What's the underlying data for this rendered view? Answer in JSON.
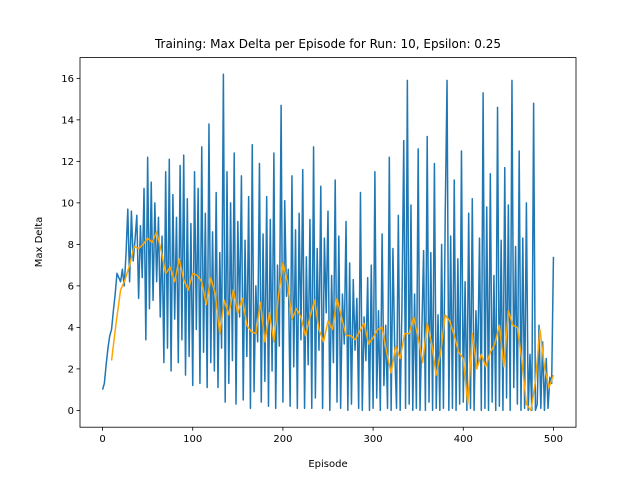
{
  "chart_data": {
    "type": "line",
    "title": "Training: Max Delta per Episode for Run: 10, Epsilon: 0.25",
    "x_label": "Episode",
    "y_label": "Max Delta",
    "xlim": [
      -25,
      525
    ],
    "ylim": [
      -0.81,
      17.0
    ],
    "xticks": [
      0,
      100,
      200,
      300,
      400,
      500
    ],
    "yticks": [
      0,
      2,
      4,
      6,
      8,
      10,
      12,
      14,
      16
    ],
    "grid": false,
    "series": [
      {
        "color": "#1f77b4",
        "x": [
          0,
          2,
          4,
          6,
          8,
          10,
          12,
          14,
          16,
          18,
          20,
          22,
          24,
          26,
          28,
          30,
          32,
          34,
          36,
          38,
          40,
          42,
          44,
          46,
          48,
          50,
          52,
          54,
          56,
          58,
          60,
          62,
          64,
          66,
          68,
          70,
          72,
          74,
          76,
          78,
          80,
          82,
          84,
          86,
          88,
          90,
          92,
          94,
          96,
          98,
          100,
          102,
          104,
          106,
          108,
          110,
          112,
          114,
          116,
          118,
          120,
          122,
          124,
          126,
          128,
          130,
          132,
          134,
          136,
          138,
          140,
          142,
          144,
          146,
          148,
          150,
          152,
          154,
          156,
          158,
          160,
          162,
          164,
          166,
          168,
          170,
          172,
          174,
          176,
          178,
          180,
          182,
          184,
          186,
          188,
          190,
          192,
          194,
          196,
          198,
          200,
          202,
          204,
          206,
          208,
          210,
          212,
          214,
          216,
          218,
          220,
          222,
          224,
          226,
          228,
          230,
          232,
          234,
          236,
          238,
          240,
          242,
          244,
          246,
          248,
          250,
          252,
          254,
          256,
          258,
          260,
          262,
          264,
          266,
          268,
          270,
          272,
          274,
          276,
          278,
          280,
          282,
          284,
          286,
          288,
          290,
          292,
          294,
          296,
          298,
          300,
          302,
          304,
          306,
          308,
          310,
          312,
          314,
          316,
          318,
          320,
          322,
          324,
          326,
          328,
          330,
          332,
          334,
          336,
          338,
          340,
          342,
          344,
          346,
          348,
          350,
          352,
          354,
          356,
          358,
          360,
          362,
          364,
          366,
          368,
          370,
          372,
          374,
          376,
          378,
          380,
          382,
          384,
          386,
          388,
          390,
          392,
          394,
          396,
          398,
          400,
          402,
          404,
          406,
          408,
          410,
          412,
          414,
          416,
          418,
          420,
          422,
          424,
          426,
          428,
          430,
          432,
          434,
          436,
          438,
          440,
          442,
          444,
          446,
          448,
          450,
          452,
          454,
          456,
          458,
          460,
          462,
          464,
          466,
          468,
          470,
          472,
          474,
          476,
          478,
          480,
          482,
          484,
          486,
          488,
          490,
          492,
          494,
          496,
          498,
          500
        ],
        "values": [
          1,
          1.3,
          2.2,
          3,
          3.6,
          3.9,
          4.8,
          5.6,
          6.6,
          6.4,
          6.2,
          6.8,
          6,
          7.5,
          9.7,
          6.2,
          9.6,
          7.2,
          8.2,
          9.4,
          5.4,
          8.9,
          6.4,
          10.7,
          3.4,
          12.2,
          4.9,
          11,
          5.3,
          10,
          6.2,
          9.3,
          4.5,
          8.4,
          2.3,
          11.5,
          3,
          12.1,
          1.9,
          10.4,
          4.4,
          9.3,
          2.3,
          11.8,
          3.4,
          12.3,
          1.7,
          10.2,
          2.6,
          9,
          1.2,
          11.5,
          3.9,
          10.7,
          1.3,
          12.7,
          2.8,
          9.5,
          1.1,
          13.8,
          2.3,
          8.6,
          1.9,
          10.5,
          1.1,
          7.6,
          3,
          16.2,
          0.4,
          11.5,
          1.3,
          10,
          2.4,
          12.4,
          0.3,
          9.1,
          4.5,
          11.3,
          0.5,
          8.2,
          2.6,
          10.3,
          0.1,
          12.8,
          0.9,
          6,
          3.3,
          11.9,
          0.4,
          8.5,
          1.4,
          10.3,
          0.2,
          9.2,
          1.9,
          12.4,
          0.1,
          7,
          3.1,
          14.7,
          0.4,
          10.1,
          5.5,
          6.8,
          0.2,
          11.3,
          2.1,
          8.7,
          0.1,
          9.5,
          3.4,
          11.6,
          0.1,
          7.4,
          2.2,
          9.2,
          0.1,
          12.7,
          0.6,
          7.8,
          2.9,
          10.8,
          0.1,
          8.3,
          4.7,
          9.6,
          0,
          6.5,
          2.3,
          11.1,
          0.4,
          8.4,
          0.1,
          5.6,
          3.2,
          9.1,
          0,
          7.1,
          0.3,
          6.3,
          2.9,
          5.4,
          0.1,
          10.5,
          0,
          4.5,
          2.4,
          6.4,
          0,
          7,
          0.1,
          11.5,
          0.6,
          4.8,
          0,
          8.5,
          1.2,
          4.1,
          0.1,
          12.2,
          0,
          7.8,
          2.9,
          0.1,
          9.4,
          0,
          5,
          13,
          0.1,
          15.9,
          0.3,
          9.9,
          0,
          5.6,
          0.1,
          12.6,
          0,
          3.7,
          7.7,
          0,
          13.2,
          0.4,
          7.6,
          0,
          11.9,
          0.1,
          4.6,
          0,
          8,
          0.1,
          9.5,
          15.9,
          0,
          8.4,
          0.1,
          11.1,
          0,
          7.3,
          0.3,
          12.5,
          0.4,
          6.2,
          0,
          9.5,
          0.1,
          10.2,
          0,
          4.8,
          2.2,
          8.3,
          0,
          15.3,
          0.1,
          9.8,
          0,
          11.4,
          0.4,
          6.5,
          0,
          14.6,
          0.2,
          8.2,
          0,
          11.7,
          0.6,
          9.9,
          0,
          15.9,
          1.1,
          7.9,
          0.3,
          12.5,
          0,
          8.3,
          0.1,
          10,
          0,
          2.7,
          0,
          14.8,
          0,
          0.3,
          4.1,
          0.1,
          3.3,
          0,
          2.5,
          0.1,
          1.6,
          1.3,
          7.4
        ]
      },
      {
        "color": "#ffa500",
        "x": [
          10,
          15,
          20,
          25,
          30,
          35,
          40,
          45,
          50,
          55,
          60,
          65,
          70,
          75,
          80,
          85,
          90,
          95,
          100,
          105,
          110,
          115,
          120,
          125,
          130,
          135,
          140,
          145,
          150,
          155,
          160,
          165,
          170,
          175,
          180,
          185,
          190,
          195,
          200,
          205,
          210,
          215,
          220,
          225,
          230,
          235,
          240,
          245,
          250,
          255,
          260,
          265,
          270,
          275,
          280,
          285,
          290,
          295,
          300,
          305,
          310,
          315,
          320,
          325,
          330,
          335,
          340,
          345,
          350,
          355,
          360,
          365,
          370,
          375,
          380,
          385,
          390,
          395,
          400,
          405,
          410,
          415,
          420,
          425,
          430,
          435,
          440,
          445,
          450,
          455,
          460,
          465,
          470,
          475,
          480,
          485,
          490,
          495,
          500
        ],
        "values": [
          2.4,
          4.2,
          5.8,
          6.3,
          7,
          7.9,
          7.8,
          8,
          8.3,
          8.1,
          8.6,
          7.7,
          6.6,
          6.9,
          6.2,
          7.3,
          6.3,
          5.8,
          6.6,
          6.5,
          6.2,
          5.1,
          6.4,
          5.6,
          3.7,
          5.3,
          4.6,
          5.8,
          4.7,
          5.4,
          4.1,
          3.8,
          3.7,
          5.2,
          3.3,
          4.7,
          3.3,
          5.5,
          7.1,
          6.2,
          4.4,
          4.9,
          4.5,
          3.6,
          4.5,
          5.3,
          3.9,
          3.3,
          4.3,
          3.9,
          5.4,
          4.5,
          3.6,
          3.6,
          3.4,
          3.8,
          4.2,
          3.2,
          3.5,
          3.9,
          4,
          2.8,
          1.8,
          3.1,
          2.5,
          3.7,
          3.7,
          4.5,
          3.5,
          2.3,
          4.2,
          3.2,
          1.7,
          2.8,
          4.6,
          4.3,
          3.6,
          2.8,
          2.5,
          0.3,
          3.7,
          2,
          2.7,
          2.1,
          2.8,
          3.2,
          4.1,
          2.1,
          4.8,
          4.1,
          4,
          2.4,
          0.3,
          0,
          1.4,
          3.9,
          2.1,
          1.1,
          1.7
        ]
      }
    ]
  }
}
